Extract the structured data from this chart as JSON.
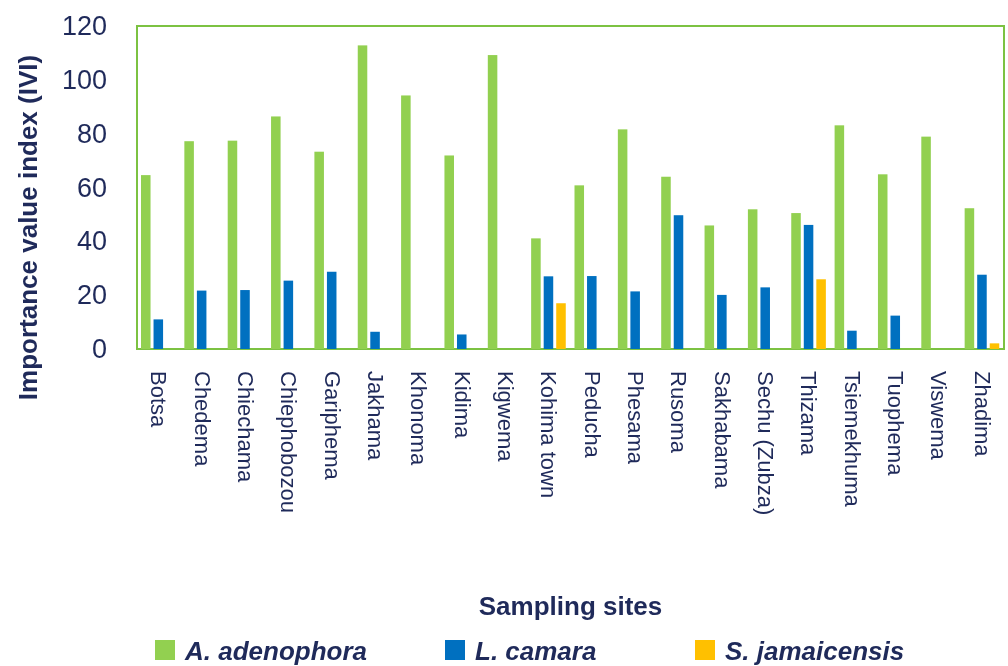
{
  "chart_data": {
    "type": "bar",
    "xlabel": "Sampling sites",
    "ylabel": "Importance value index (IVI)",
    "categories": [
      "Botsa",
      "Chedema",
      "Chiechama",
      "Chiephobozou",
      "Gariphema",
      "Jakhama",
      "Khonoma",
      "Kidima",
      "Kigwema",
      "Kohima town",
      "Peducha",
      "Phesama",
      "Rusoma",
      "Sakhabama",
      "Sechu (Zubza)",
      "Thizama",
      "Tsiemekhuma",
      "Tuophema",
      "Viswema",
      "Zhadima"
    ],
    "series": [
      {
        "name": "A. adenophora",
        "color": "#92d050",
        "values": [
          64.6,
          77.2,
          77.4,
          86.4,
          73.3,
          112.8,
          94.2,
          71.9,
          109.2,
          41.1,
          60.8,
          81.6,
          64.0,
          45.9,
          51.9,
          50.5,
          83.1,
          64.9,
          78.9,
          52.3
        ]
      },
      {
        "name": "L. camara",
        "color": "#0070c0",
        "values": [
          11.0,
          21.7,
          21.9,
          25.4,
          28.7,
          6.4,
          0,
          5.4,
          0,
          27.0,
          27.1,
          21.4,
          49.7,
          20.1,
          22.9,
          46.1,
          6.8,
          12.4,
          0,
          27.6
        ]
      },
      {
        "name": "S. jamaicensis",
        "color": "#ffc000",
        "values": [
          0,
          0,
          0,
          0,
          0,
          0,
          0,
          0,
          0,
          17.0,
          0,
          0,
          0,
          0,
          0,
          25.9,
          0,
          0,
          0,
          2.1
        ]
      }
    ],
    "ylim": [
      0,
      120
    ],
    "yticks": [
      0,
      20,
      40,
      60,
      80,
      100,
      120
    ],
    "grid": false,
    "legend": "bottom"
  }
}
